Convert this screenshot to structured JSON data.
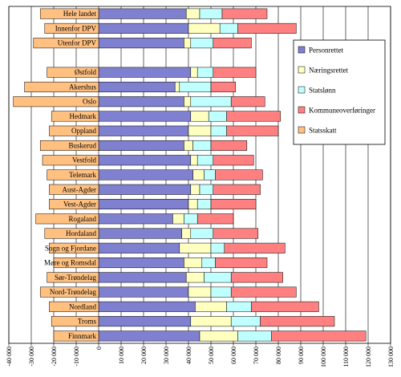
{
  "chart_data": {
    "type": "bar",
    "orientation": "horizontal",
    "stacked": true,
    "grid": true,
    "legend_position": "right",
    "xlim": [
      -40000,
      130000
    ],
    "xticks": [
      -40000,
      -30000,
      -20000,
      -10000,
      0,
      10000,
      20000,
      30000,
      40000,
      50000,
      60000,
      70000,
      80000,
      90000,
      100000,
      110000,
      120000,
      130000
    ],
    "xtick_labels": [
      "-40 000",
      "-30 000",
      "-20 000",
      "-10 000",
      "0",
      "10 000",
      "20 000",
      "30 000",
      "40 000",
      "50 000",
      "60 000",
      "70 000",
      "80 000",
      "90 000",
      "100 000",
      "110 000",
      "120 000",
      "130 000"
    ],
    "categories": [
      "Hele landet",
      "Innenfor DPV",
      "Utenfor DPV",
      "",
      "Østfold",
      "Akershus",
      "Oslo",
      "Hedmark",
      "Oppland",
      "Buskerud",
      "Vestfold",
      "Telemark",
      "Aust-Agder",
      "Vest-Agder",
      "Rogaland",
      "Hordaland",
      "Sogn og Fjordane",
      "Møre og Romsdal",
      "Sør-Trøndelag",
      "Nord-Trøndelag",
      "Nordland",
      "Troms",
      "Finnmark"
    ],
    "series": [
      {
        "name": "Personrettet",
        "color": "#8080d0",
        "values": [
          39000,
          40000,
          38000,
          null,
          41000,
          34000,
          38000,
          41000,
          40000,
          38000,
          41000,
          42000,
          41000,
          40000,
          33000,
          37000,
          36000,
          38000,
          39000,
          40000,
          43000,
          41000,
          45000
        ]
      },
      {
        "name": "Næringsrettet",
        "color": "#ffffc0",
        "values": [
          6000,
          14000,
          3000,
          null,
          3000,
          2000,
          3000,
          8000,
          10000,
          4000,
          3000,
          5000,
          4000,
          4000,
          5000,
          4000,
          14000,
          8000,
          8000,
          10000,
          14000,
          18000,
          17000
        ]
      },
      {
        "name": "Statslønn",
        "color": "#c0ffff",
        "values": [
          10000,
          8000,
          10000,
          null,
          7000,
          14000,
          18000,
          8000,
          7000,
          8000,
          7000,
          5000,
          6000,
          6000,
          6000,
          10000,
          6000,
          6000,
          12000,
          9000,
          11000,
          13000,
          15000
        ]
      },
      {
        "name": "Kommuneoverføringer",
        "color": "#ff8080",
        "values": [
          20000,
          26000,
          17000,
          null,
          19000,
          11000,
          15000,
          24000,
          23000,
          16000,
          18000,
          21000,
          21000,
          20000,
          16000,
          20000,
          27000,
          23000,
          23000,
          29000,
          30000,
          33000,
          42000
        ]
      },
      {
        "name": "Statsskatt",
        "color": "#ffc080",
        "values": [
          -26000,
          -24000,
          -29000,
          null,
          -23000,
          -33000,
          -38000,
          -21000,
          -22000,
          -26000,
          -25000,
          -23000,
          -22000,
          -22000,
          -28000,
          -24000,
          -22000,
          -20000,
          -23000,
          -26000,
          -22000,
          -21000,
          -20000
        ]
      }
    ]
  }
}
